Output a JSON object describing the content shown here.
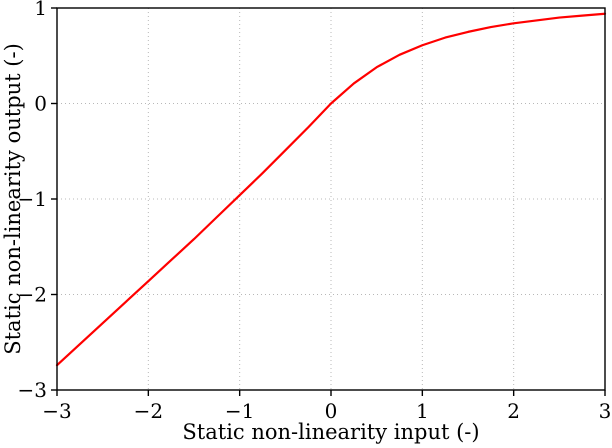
{
  "chart_data": {
    "type": "line",
    "title": "",
    "xlabel": "Static non-linearity input (-)",
    "ylabel": "Static non-linearity output (-)",
    "xlim": [
      -3,
      3
    ],
    "ylim": [
      -3,
      1
    ],
    "xticks": [
      -3,
      -2,
      -1,
      0,
      1,
      2,
      3
    ],
    "xtick_labels": [
      "−3",
      "−2",
      "−1",
      "0",
      "1",
      "2",
      "3"
    ],
    "yticks": [
      -3,
      -2,
      -1,
      0,
      1
    ],
    "ytick_labels": [
      "−3",
      "−2",
      "−1",
      "0",
      "1"
    ],
    "grid": true,
    "grid_style": "dotted",
    "grid_color": "#b8b8b8",
    "legend": "none",
    "series": [
      {
        "name": "static-nonlinearity-curve",
        "color": "#ff0000",
        "x": [
          -3.0,
          -2.75,
          -2.5,
          -2.25,
          -2.0,
          -1.75,
          -1.5,
          -1.25,
          -1.0,
          -0.75,
          -0.5,
          -0.25,
          0.0,
          0.25,
          0.5,
          0.75,
          1.0,
          1.25,
          1.5,
          1.75,
          2.0,
          2.25,
          2.5,
          2.75,
          3.0
        ],
        "y": [
          -2.74,
          -2.52,
          -2.3,
          -2.08,
          -1.86,
          -1.64,
          -1.42,
          -1.19,
          -0.96,
          -0.73,
          -0.49,
          -0.25,
          0.0,
          0.21,
          0.38,
          0.51,
          0.61,
          0.69,
          0.75,
          0.8,
          0.84,
          0.87,
          0.9,
          0.92,
          0.94
        ]
      }
    ]
  }
}
